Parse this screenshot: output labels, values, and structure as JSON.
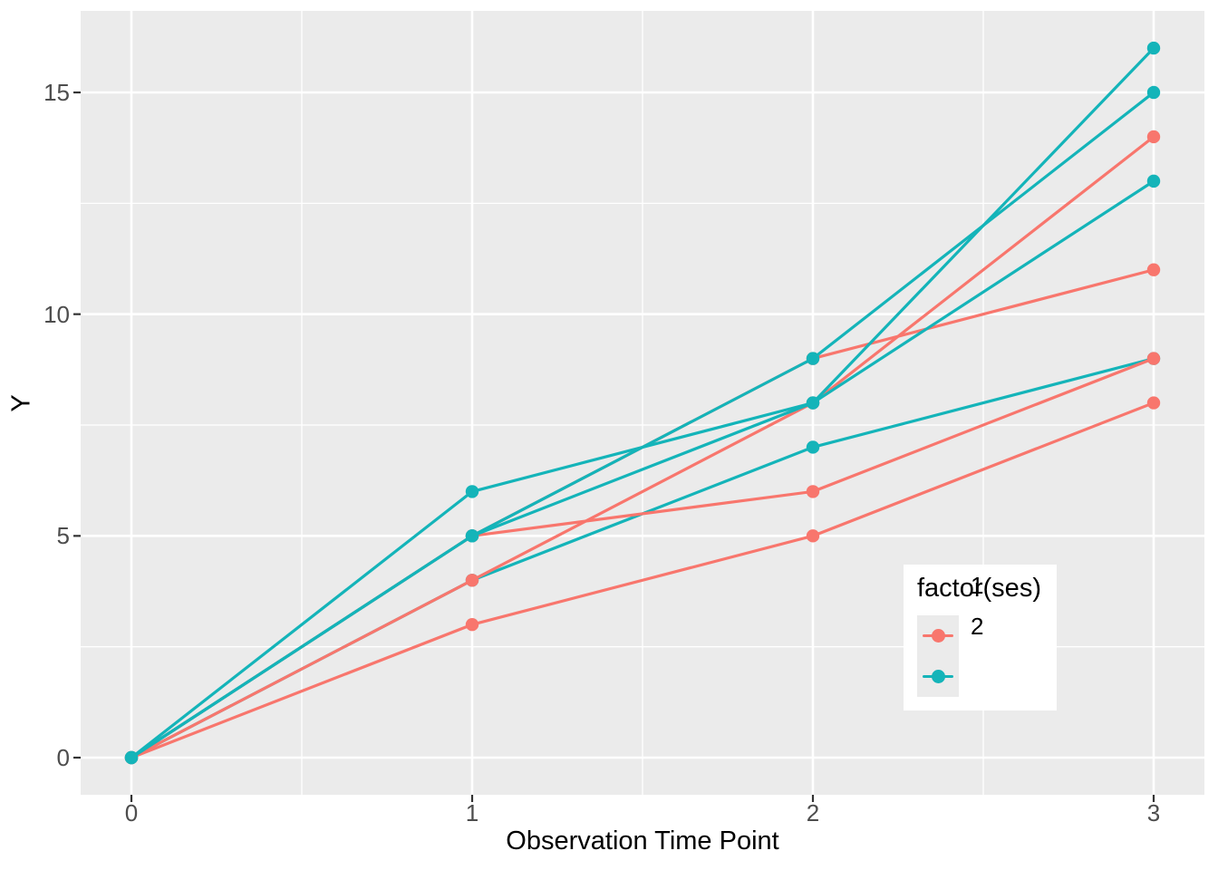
{
  "figure": {
    "background": "#FFFFFF",
    "panel_background": "#EBEBEB",
    "grid_color": "#FFFFFF",
    "tick_color": "#333333",
    "tick_text_color": "#4D4D4D"
  },
  "axes": {
    "x": {
      "title": "Observation Time Point",
      "tick_labels": [
        "0",
        "1",
        "2",
        "3"
      ]
    },
    "y": {
      "title": "Y",
      "tick_labels": [
        "0",
        "5",
        "10",
        "15"
      ]
    }
  },
  "legend": {
    "title": "factor(ses)",
    "items": [
      {
        "label": "1",
        "color": "#F8766D"
      },
      {
        "label": "2",
        "color": "#14B4B9"
      }
    ]
  },
  "chart_data": {
    "type": "line",
    "title": "",
    "xlabel": "Observation Time Point",
    "ylabel": "Y",
    "x": [
      0,
      1,
      2,
      3
    ],
    "x_ticks": [
      0,
      1,
      2,
      3
    ],
    "y_ticks": [
      0,
      5,
      10,
      15
    ],
    "x_minor_ticks": [
      0.5,
      1.5,
      2.5
    ],
    "y_minor_ticks": [
      2.5,
      7.5,
      12.5
    ],
    "xlim": [
      -0.15,
      3.15
    ],
    "ylim": [
      -0.84,
      16.84
    ],
    "grid": "major-and-minor-white-on-grey",
    "legend_title": "factor(ses)",
    "legend_position": "inside-bottom-right",
    "groups": {
      "1": "#F8766D",
      "2": "#14B4B9"
    },
    "series": [
      {
        "id": "subject-t4",
        "ses": "2",
        "values": [
          0,
          4,
          7,
          9
        ]
      },
      {
        "id": "subject-r1",
        "ses": "1",
        "values": [
          0,
          3,
          5,
          8
        ]
      },
      {
        "id": "subject-r2",
        "ses": "1",
        "values": [
          0,
          5,
          6,
          9
        ]
      },
      {
        "id": "subject-r3",
        "ses": "1",
        "values": [
          0,
          4,
          8,
          14
        ]
      },
      {
        "id": "subject-r4",
        "ses": "1",
        "values": [
          0,
          5,
          9,
          11
        ]
      },
      {
        "id": "subject-t1",
        "ses": "2",
        "values": [
          0,
          5,
          8,
          16
        ]
      },
      {
        "id": "subject-t2",
        "ses": "2",
        "values": [
          0,
          6,
          8,
          13
        ]
      },
      {
        "id": "subject-t3",
        "ses": "2",
        "values": [
          0,
          5,
          9,
          15
        ]
      }
    ]
  }
}
